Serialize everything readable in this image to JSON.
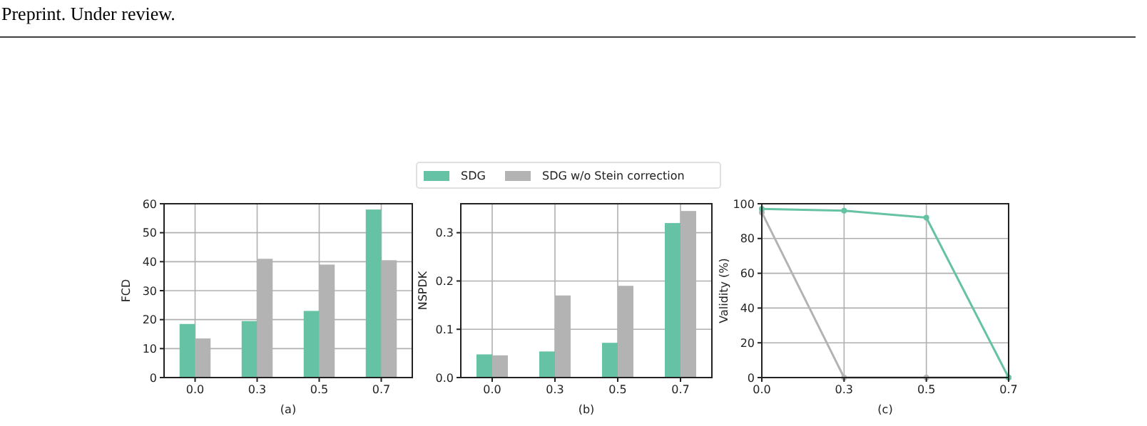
{
  "chart_data": [
    {
      "type": "bar",
      "annotations": [
        "Preprint. Under review."
      ],
      "xlabel": "(a)",
      "ylabel": "FCD",
      "categories": [
        "0.0",
        "0.3",
        "0.5",
        "0.7"
      ],
      "series": [
        {
          "color": "#66c2a5",
          "values": [
            18.5,
            19.5,
            23,
            58
          ]
        },
        {
          "color": "#b3b3b3",
          "values": [
            13.5,
            41,
            39,
            40.5
          ]
        }
      ],
      "ylim": [
        0,
        60
      ],
      "yticks": [
        0,
        10,
        20,
        30,
        40,
        50,
        60
      ],
      "grid": true
    },
    {
      "type": "bar",
      "xlabel": "(b)",
      "ylabel": "NSPDK",
      "categories": [
        "0.0",
        "0.3",
        "0.5",
        "0.7"
      ],
      "series": [
        {
          "name": "SDG",
          "color": "#66c2a5",
          "values": [
            0.048,
            0.054,
            0.072,
            0.32
          ]
        },
        {
          "name": "SDG w/o Stein correction",
          "color": "#b3b3b3",
          "values": [
            0.046,
            0.17,
            0.19,
            0.345
          ]
        }
      ],
      "ylim": [
        0,
        0.36
      ],
      "yticks": [
        {
          "value": 0,
          "label": "0.0"
        },
        0.1,
        0.2,
        0.3
      ],
      "grid": true,
      "legend": "top"
    },
    {
      "type": "line",
      "xlabel": "(c)",
      "ylabel": "Validity (%)",
      "categories": [
        "0.0",
        "0.3",
        "0.5",
        "0.7"
      ],
      "series": [
        {
          "color": "#b3b3b3",
          "values": [
            95,
            0,
            0,
            0
          ]
        },
        {
          "color": "#66c2a5",
          "values": [
            97,
            96,
            92,
            0
          ]
        }
      ],
      "ylim": [
        0,
        100
      ],
      "yticks": [
        0,
        20,
        40,
        60,
        80,
        100
      ],
      "grid": true,
      "marker": "circle",
      "line_style": "solid"
    }
  ]
}
